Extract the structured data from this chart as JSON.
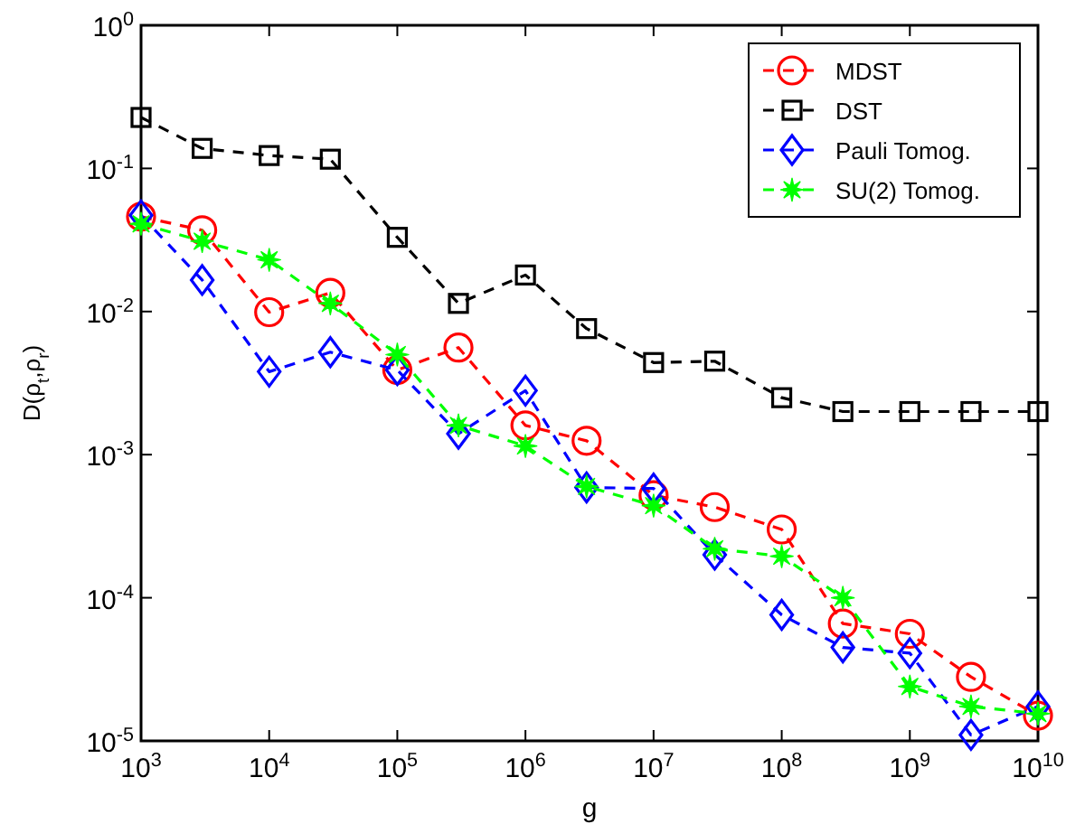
{
  "chart_data": {
    "type": "line",
    "xlabel": "g",
    "ylabel": "D(ρ$_{t}$,ρ$_{r}$)",
    "log": "xy",
    "xlim": [
      1000,
      10000000000
    ],
    "ylim": [
      1e-05,
      1
    ],
    "xticks": [
      {
        "value": 1000,
        "label": "10$^{3}$"
      },
      {
        "value": 10000,
        "label": "10$^{4}$"
      },
      {
        "value": 100000,
        "label": "10$^{5}$"
      },
      {
        "value": 1000000,
        "label": "10$^{6}$"
      },
      {
        "value": 10000000,
        "label": "10$^{7}$"
      },
      {
        "value": 100000000,
        "label": "10$^{8}$"
      },
      {
        "value": 1000000000,
        "label": "10$^{9}$"
      },
      {
        "value": 10000000000,
        "label": "10$^{10}$"
      }
    ],
    "yticks": [
      {
        "value": 1e-05,
        "label": "10$^{-5}$"
      },
      {
        "value": 0.0001,
        "label": "10$^{-4}$"
      },
      {
        "value": 0.001,
        "label": "10$^{-3}$"
      },
      {
        "value": 0.01,
        "label": "10$^{-2}$"
      },
      {
        "value": 0.1,
        "label": "10$^{-1}$"
      },
      {
        "value": 1,
        "label": "10$^{0}$"
      }
    ],
    "x": [
      1000,
      3000,
      10000,
      30000,
      100000,
      300000,
      1000000,
      3000000,
      10000000,
      30000000,
      100000000,
      300000000,
      1000000000,
      3000000000,
      10000000000
    ],
    "grid": false,
    "legend": "top right",
    "line_style": "dashed",
    "series": [
      {
        "name": "MDST",
        "color": "#ff0000",
        "marker": "circle",
        "values": [
          0.046,
          0.037,
          0.0099,
          0.0135,
          0.0039,
          0.0056,
          0.0016,
          0.00125,
          0.00052,
          0.00043,
          0.0003,
          6.6e-05,
          5.6e-05,
          2.8e-05,
          1.5e-05
        ]
      },
      {
        "name": "DST",
        "color": "#000000",
        "marker": "square",
        "values": [
          0.227,
          0.138,
          0.123,
          0.116,
          0.033,
          0.0114,
          0.018,
          0.0076,
          0.0044,
          0.0045,
          0.0025,
          0.002,
          0.002,
          0.002,
          0.002
        ]
      },
      {
        "name": "Pauli Tomog.",
        "color": "#0000ff",
        "marker": "diamond",
        "values": [
          0.047,
          0.0166,
          0.0038,
          0.0052,
          0.0039,
          0.0014,
          0.0028,
          0.00059,
          0.00058,
          0.0002,
          7.6e-05,
          4.5e-05,
          4.1e-05,
          1.1e-05,
          1.74e-05
        ]
      },
      {
        "name": "SU(2) Tomog.",
        "color": "#00ff00",
        "marker": "star",
        "values": [
          0.041,
          0.031,
          0.023,
          0.0114,
          0.005,
          0.0016,
          0.00115,
          0.0006,
          0.00044,
          0.00022,
          0.000195,
          0.0001,
          2.4e-05,
          1.74e-05,
          1.55e-05
        ]
      }
    ]
  }
}
